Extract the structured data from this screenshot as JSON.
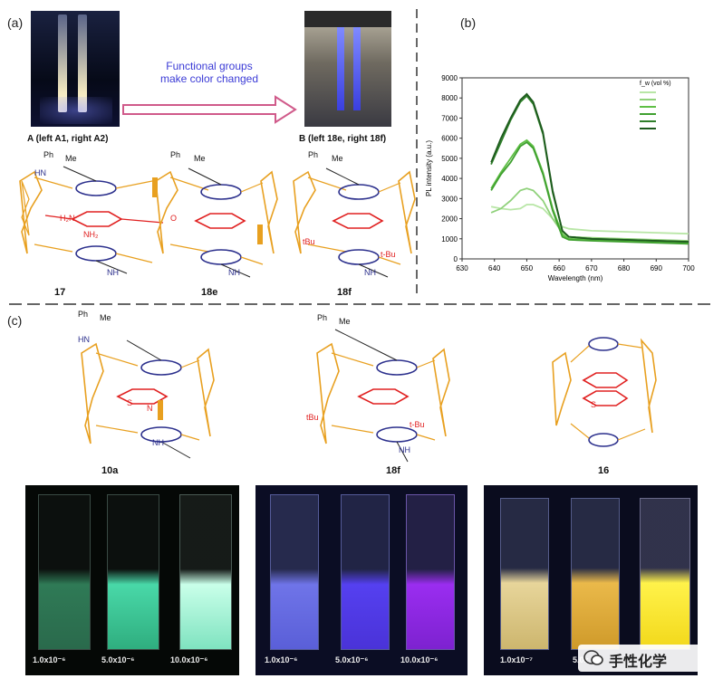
{
  "panels": {
    "a": "(a)",
    "b": "(b)",
    "c": "(c)"
  },
  "arrow_text": {
    "line1": "Functional groups",
    "line2": "make color changed"
  },
  "photo_captions": {
    "left": "A (left A1, right A2)",
    "right": "B (left 18e, right 18f)"
  },
  "compounds": {
    "c17": "17",
    "c18e": "18e",
    "c18f": "18f",
    "c10a": "10a",
    "c18f_b": "18f",
    "c16": "16"
  },
  "chem_text": {
    "ph": "Ph",
    "me": "Me",
    "hn": "HN",
    "nh": "NH",
    "o": "O",
    "nh2": "NH₂",
    "h2n": "H₂N",
    "tbu": "tBu",
    "tbu2": "t-Bu",
    "s": "S",
    "n": "N"
  },
  "conc": {
    "g1": [
      "1.0x10⁻⁶",
      "5.0x10⁻⁶",
      "10.0x10⁻⁶"
    ],
    "g2": [
      "1.0x10⁻⁶",
      "5.0x10⁻⁶",
      "10.0x10⁻⁶"
    ],
    "g3": [
      "1.0x10⁻⁷",
      "5.0x"
    ]
  },
  "watermark": "手性化学",
  "colors": {
    "orange": "#e8a020",
    "navy": "#2b2f8c",
    "red": "#e02020",
    "arrow": "#d05a8a"
  },
  "chart_data": {
    "type": "line",
    "xlabel": "Wavelength (nm)",
    "ylabel": "PL intensity (a.u.)",
    "xlim": [
      630,
      700
    ],
    "ylim": [
      0,
      9000
    ],
    "xticks": [
      630,
      640,
      650,
      660,
      670,
      680,
      690,
      700
    ],
    "yticks": [
      0,
      1000,
      2000,
      3000,
      4000,
      5000,
      6000,
      7000,
      8000,
      9000
    ],
    "legend_title": "f_w (vol %)",
    "legend_position": "top-right",
    "x": [
      639,
      642,
      645,
      648,
      650,
      652,
      655,
      658,
      661,
      663,
      670,
      680,
      690,
      700
    ],
    "series": [
      {
        "color": "#b8e6a6",
        "values": [
          2600,
          2500,
          2450,
          2500,
          2700,
          2700,
          2500,
          2000,
          1600,
          1500,
          1400,
          1350,
          1300,
          1250
        ]
      },
      {
        "color": "#8fd17a",
        "values": [
          2300,
          2500,
          2900,
          3400,
          3500,
          3400,
          2900,
          2000,
          1300,
          1100,
          1050,
          1000,
          950,
          900
        ]
      },
      {
        "color": "#5fbf45",
        "values": [
          3500,
          4300,
          5000,
          5700,
          5900,
          5600,
          4300,
          2500,
          1200,
          1000,
          950,
          900,
          850,
          800
        ]
      },
      {
        "color": "#3fa02f",
        "values": [
          3400,
          4200,
          4800,
          5600,
          5800,
          5500,
          4200,
          2400,
          1100,
          950,
          900,
          850,
          800,
          750
        ]
      },
      {
        "color": "#2f7f2a",
        "values": [
          4700,
          5800,
          6900,
          7800,
          8100,
          7700,
          6200,
          3300,
          1400,
          1100,
          1000,
          950,
          900,
          850
        ]
      },
      {
        "color": "#1d5a1d",
        "values": [
          4800,
          6000,
          7000,
          7900,
          8200,
          7800,
          6300,
          3400,
          1400,
          1100,
          1000,
          950,
          900,
          850
        ]
      }
    ]
  }
}
